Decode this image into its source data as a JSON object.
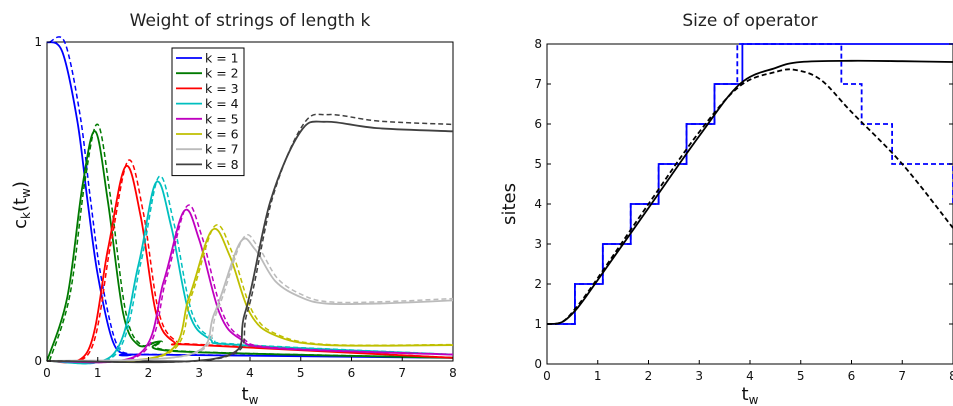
{
  "chart_data": [
    {
      "type": "line",
      "title": "Weight of strings of length k",
      "xlabel": "t",
      "xlabel_sub": "w",
      "ylabel_main": "c",
      "ylabel_sub": "k",
      "ylabel_arg": "(t",
      "ylabel_arg_sub": "w",
      "ylabel_close": ")",
      "xlim": [
        0,
        8
      ],
      "ylim": [
        0,
        1
      ],
      "xticks": [
        "0",
        "1",
        "2",
        "3",
        "4",
        "5",
        "6",
        "7",
        "8"
      ],
      "yticks": [
        "0",
        "1"
      ],
      "legend_position": "top-center",
      "line_styles": [
        "solid",
        "dashed"
      ],
      "series": [
        {
          "name": "k = 1",
          "color": "#0000ff",
          "points": [
            [
              0,
              1
            ],
            [
              0.3,
              0.97
            ],
            [
              0.6,
              0.75
            ],
            [
              0.8,
              0.5
            ],
            [
              1.0,
              0.27
            ],
            [
              1.3,
              0.06
            ],
            [
              1.6,
              0.02
            ],
            [
              2.0,
              0.02
            ],
            [
              8,
              0.01
            ]
          ]
        },
        {
          "name": "k = 2",
          "color": "#007a00",
          "points": [
            [
              0,
              0
            ],
            [
              0.4,
              0.2
            ],
            [
              0.7,
              0.55
            ],
            [
              0.95,
              0.72
            ],
            [
              1.2,
              0.5
            ],
            [
              1.5,
              0.15
            ],
            [
              1.8,
              0.05
            ],
            [
              2.2,
              0.06
            ],
            [
              2.6,
              0.03
            ],
            [
              8,
              0.01
            ]
          ]
        },
        {
          "name": "k = 3",
          "color": "#ff0000",
          "points": [
            [
              0,
              0
            ],
            [
              0.8,
              0.03
            ],
            [
              1.2,
              0.35
            ],
            [
              1.55,
              0.61
            ],
            [
              1.85,
              0.45
            ],
            [
              2.15,
              0.15
            ],
            [
              2.5,
              0.06
            ],
            [
              3.0,
              0.05
            ],
            [
              8,
              0.01
            ]
          ]
        },
        {
          "name": "k = 4",
          "color": "#00bfbf",
          "points": [
            [
              0,
              0
            ],
            [
              1.3,
              0.02
            ],
            [
              1.8,
              0.3
            ],
            [
              2.15,
              0.56
            ],
            [
              2.45,
              0.42
            ],
            [
              2.8,
              0.15
            ],
            [
              3.2,
              0.07
            ],
            [
              3.8,
              0.05
            ],
            [
              8,
              0.02
            ]
          ]
        },
        {
          "name": "k = 5",
          "color": "#bf00bf",
          "points": [
            [
              0,
              0
            ],
            [
              1.8,
              0.02
            ],
            [
              2.3,
              0.25
            ],
            [
              2.7,
              0.47
            ],
            [
              3.0,
              0.38
            ],
            [
              3.4,
              0.15
            ],
            [
              3.8,
              0.07
            ],
            [
              4.5,
              0.04
            ],
            [
              8,
              0.02
            ]
          ]
        },
        {
          "name": "k = 6",
          "color": "#bfbf00",
          "points": [
            [
              0,
              0
            ],
            [
              2.3,
              0.02
            ],
            [
              2.8,
              0.2
            ],
            [
              3.25,
              0.41
            ],
            [
              3.6,
              0.33
            ],
            [
              4.0,
              0.15
            ],
            [
              4.5,
              0.08
            ],
            [
              5.5,
              0.05
            ],
            [
              8,
              0.05
            ]
          ]
        },
        {
          "name": "k = 7",
          "color": "#bbbbbb",
          "points": [
            [
              0,
              0
            ],
            [
              2.8,
              0.02
            ],
            [
              3.3,
              0.15
            ],
            [
              3.8,
              0.37
            ],
            [
              4.1,
              0.35
            ],
            [
              4.5,
              0.25
            ],
            [
              5.0,
              0.2
            ],
            [
              5.5,
              0.18
            ],
            [
              6.5,
              0.18
            ],
            [
              8,
              0.19
            ]
          ]
        },
        {
          "name": "k = 8",
          "color": "#404040",
          "points": [
            [
              0,
              0
            ],
            [
              3.4,
              0.01
            ],
            [
              3.9,
              0.15
            ],
            [
              4.4,
              0.5
            ],
            [
              5.0,
              0.72
            ],
            [
              5.5,
              0.75
            ],
            [
              6.5,
              0.73
            ],
            [
              8,
              0.72
            ]
          ]
        }
      ]
    },
    {
      "type": "line",
      "title": "Size of operator",
      "xlabel": "t",
      "xlabel_sub": "w",
      "ylabel": "sites",
      "xlim": [
        0,
        8
      ],
      "ylim": [
        0,
        8
      ],
      "xticks": [
        "0",
        "1",
        "2",
        "3",
        "4",
        "5",
        "6",
        "7",
        "8"
      ],
      "yticks": [
        "0",
        "1",
        "2",
        "3",
        "4",
        "5",
        "6",
        "7",
        "8"
      ],
      "series": [
        {
          "color": "#0000ff",
          "style": "solid",
          "step": true,
          "points": [
            [
              0,
              1
            ],
            [
              0.55,
              1
            ],
            [
              0.55,
              2
            ],
            [
              1.1,
              2
            ],
            [
              1.1,
              3
            ],
            [
              1.65,
              3
            ],
            [
              1.65,
              4
            ],
            [
              2.2,
              4
            ],
            [
              2.2,
              5
            ],
            [
              2.75,
              5
            ],
            [
              2.75,
              6
            ],
            [
              3.3,
              6
            ],
            [
              3.3,
              7
            ],
            [
              3.85,
              7
            ],
            [
              3.85,
              8
            ],
            [
              8,
              8
            ]
          ]
        },
        {
          "color": "#0000ff",
          "style": "dashed",
          "step": true,
          "points": [
            [
              0,
              1
            ],
            [
              0.55,
              1
            ],
            [
              0.55,
              2
            ],
            [
              1.1,
              2
            ],
            [
              1.1,
              3
            ],
            [
              1.65,
              3
            ],
            [
              1.65,
              4
            ],
            [
              2.2,
              4
            ],
            [
              2.2,
              5
            ],
            [
              2.75,
              5
            ],
            [
              2.75,
              6
            ],
            [
              3.3,
              6
            ],
            [
              3.3,
              7
            ],
            [
              3.75,
              7
            ],
            [
              3.75,
              8
            ],
            [
              5.8,
              8
            ],
            [
              5.8,
              7
            ],
            [
              6.2,
              7
            ],
            [
              6.2,
              6
            ],
            [
              6.8,
              6
            ],
            [
              6.8,
              5
            ],
            [
              8,
              5
            ],
            [
              8,
              4
            ]
          ]
        },
        {
          "color": "#000000",
          "style": "solid",
          "step": false,
          "points": [
            [
              0,
              1
            ],
            [
              0.3,
              1.05
            ],
            [
              0.6,
              1.4
            ],
            [
              1.0,
              2.1
            ],
            [
              2.0,
              3.9
            ],
            [
              3.0,
              5.7
            ],
            [
              3.8,
              7.0
            ],
            [
              4.5,
              7.4
            ],
            [
              5.0,
              7.55
            ],
            [
              6.0,
              7.58
            ],
            [
              7.0,
              7.57
            ],
            [
              8,
              7.55
            ]
          ]
        },
        {
          "color": "#000000",
          "style": "dashed",
          "step": false,
          "points": [
            [
              0,
              1
            ],
            [
              0.3,
              1.05
            ],
            [
              0.6,
              1.45
            ],
            [
              1.0,
              2.15
            ],
            [
              2.0,
              4.0
            ],
            [
              3.0,
              5.8
            ],
            [
              3.8,
              6.95
            ],
            [
              4.5,
              7.3
            ],
            [
              4.9,
              7.35
            ],
            [
              5.4,
              7.1
            ],
            [
              6.0,
              6.3
            ],
            [
              7.0,
              5.0
            ],
            [
              8,
              3.4
            ]
          ]
        }
      ]
    }
  ]
}
